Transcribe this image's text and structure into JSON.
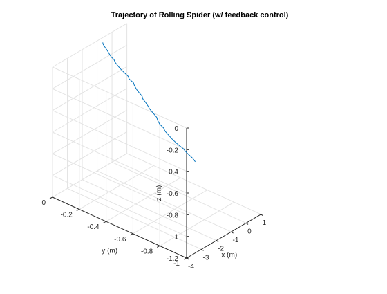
{
  "chart_data": {
    "type": "line3d",
    "title": "Trajectory of Rolling Spider (w/ feedback control)",
    "xlabel": "x (m)",
    "ylabel": "y (m)",
    "zlabel": "z (m)",
    "xlim": [
      -4,
      1
    ],
    "ylim": [
      -1,
      0
    ],
    "zlim": [
      -1.2,
      0
    ],
    "grid": true,
    "x_ticks": [
      "-4",
      "-3",
      "-2",
      "-1",
      "0",
      "1"
    ],
    "y_ticks": [
      "-1",
      "-0.8",
      "-0.6",
      "-0.4",
      "-0.2",
      "0"
    ],
    "z_ticks": [
      "-1.2",
      "-1",
      "-0.8",
      "-0.6",
      "-0.4",
      "-0.2",
      "0"
    ],
    "line_color": "#0072bd",
    "series": [
      {
        "x": [
          -0.8,
          -0.77,
          -0.75,
          -0.72,
          -0.7,
          -0.69,
          -0.66,
          -0.59,
          -0.6,
          -0.6,
          -0.59,
          -0.56,
          -0.55,
          -0.56,
          -0.54,
          -0.56,
          -0.6,
          -0.6,
          -0.59,
          -0.62,
          -0.62,
          -0.64,
          -0.63,
          -0.66,
          -0.69,
          -0.72,
          -0.76,
          -0.76,
          -0.77,
          -0.79,
          -0.81,
          -0.8,
          -0.81,
          -0.84,
          -0.88,
          -0.89
        ],
        "y": [
          -0.02,
          -0.02,
          -0.03,
          -0.04,
          -0.05,
          -0.06,
          -0.07,
          -0.08,
          -0.09,
          -0.11,
          -0.13,
          -0.15,
          -0.18,
          -0.19,
          -0.22,
          -0.23,
          -0.25,
          -0.27,
          -0.29,
          -0.3,
          -0.32,
          -0.34,
          -0.35,
          -0.38,
          -0.41,
          -0.42,
          -0.44,
          -0.47,
          -0.48,
          -0.51,
          -0.54,
          -0.57,
          -0.62,
          -0.65,
          -0.7,
          -0.72
        ],
        "z": [
          -0.02,
          -0.04,
          -0.06,
          -0.08,
          -0.1,
          -0.12,
          -0.14,
          -0.16,
          -0.18,
          -0.2,
          -0.22,
          -0.24,
          -0.26,
          -0.28,
          -0.3,
          -0.32,
          -0.34,
          -0.36,
          -0.38,
          -0.4,
          -0.42,
          -0.44,
          -0.46,
          -0.48,
          -0.5,
          -0.52,
          -0.54,
          -0.56,
          -0.58,
          -0.6,
          -0.62,
          -0.64,
          -0.66,
          -0.68,
          -0.7,
          -0.72
        ]
      }
    ]
  }
}
